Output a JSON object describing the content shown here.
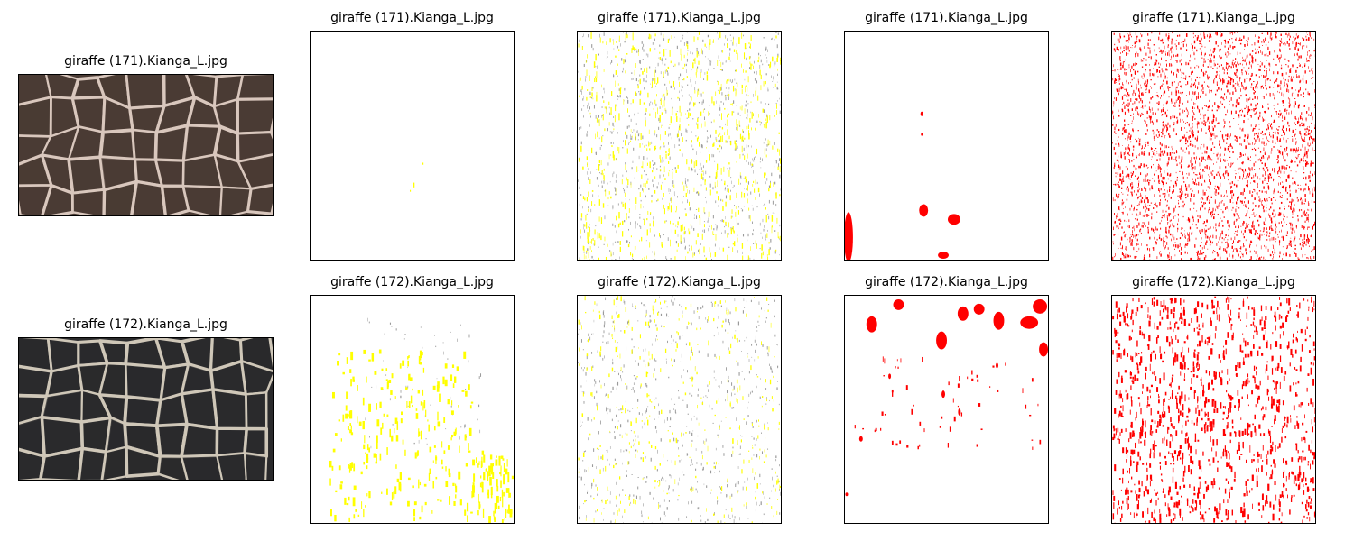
{
  "figure": {
    "rows": [
      {
        "photo_title": "giraffe (171).Kianga_L.jpg",
        "panel_titles": [
          "giraffe (171).Kianga_L.jpg",
          "giraffe (171).Kianga_L.jpg",
          "giraffe (171).Kianga_L.jpg",
          "giraffe (171).Kianga_L.jpg"
        ]
      },
      {
        "photo_title": "giraffe (172).Kianga_L.jpg",
        "panel_titles": [
          "giraffe (172).Kianga_L.jpg",
          "giraffe (172).Kianga_L.jpg",
          "giraffe (172).Kianga_L.jpg",
          "giraffe (172).Kianga_L.jpg"
        ]
      }
    ],
    "colors": {
      "yellow_mask": "#ffff00",
      "red_mask": "#ff0000",
      "gray_speck": "#9a9a9a",
      "row1_photo_base": "#4a3b34",
      "row1_photo_line": "#d9c7bd",
      "row2_photo_base": "#2a2a2c",
      "row2_photo_line": "#cfc7b8"
    }
  }
}
